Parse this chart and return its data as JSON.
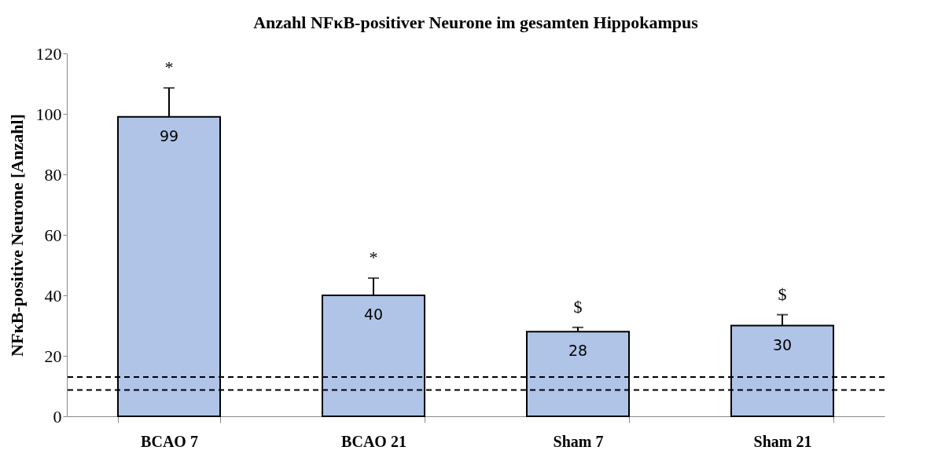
{
  "chart_data": {
    "type": "bar",
    "title": "Anzahl NFκB-positiver Neurone im gesamten Hippokampus",
    "ylabel": "NFκB-positive Neurone [Anzahl]",
    "categories": [
      "BCAO 7",
      "BCAO 21",
      "Sham 7",
      "Sham 21"
    ],
    "values": [
      99,
      40,
      28,
      30
    ],
    "color": "#b0c4e8",
    "errors": [
      9.6,
      5.7,
      1.4,
      3.6
    ],
    "data_labels": true,
    "ylim": [
      0,
      120
    ],
    "yticks": [
      0,
      20,
      40,
      60,
      80,
      100,
      120
    ],
    "grid": false,
    "ref_lines": [
      {
        "axis": "y",
        "value": 13,
        "label": null,
        "color": "#000000",
        "line_style": "dashed"
      },
      {
        "axis": "y",
        "value": 8.7,
        "label": null,
        "color": "#000000",
        "line_style": "dashed"
      }
    ],
    "annotations": [
      "*",
      "*",
      "$",
      "$"
    ]
  }
}
